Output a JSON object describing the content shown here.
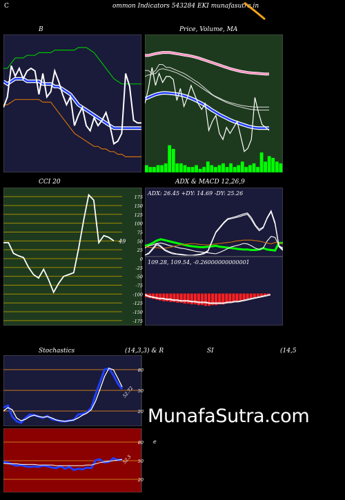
{
  "header": {
    "left_letter": "C",
    "text": "ommon  Indicators 543284  EKI munafasutra.in"
  },
  "watermark": "MunafaSutra.com",
  "colors": {
    "background": "#000000",
    "navy_panel": "#1a1a3a",
    "green_panel": "#1e3a1e",
    "red_panel": "#8b0000",
    "price_white": "#ffffff",
    "ma_blue": "#1f3fff",
    "ma_green": "#00c000",
    "ma_orange": "#d0700a",
    "volume_green": "#00ff00",
    "grid_orange": "#c8781e",
    "grid_olive": "#a08c00"
  },
  "bb": {
    "title": "B",
    "chart_data": {
      "type": "line",
      "title": "B",
      "x": [
        0,
        1,
        2,
        3,
        4,
        5,
        6,
        7,
        8,
        9,
        10,
        11,
        12,
        13,
        14,
        15,
        16,
        17,
        18,
        19,
        20,
        21,
        22,
        23,
        24,
        25,
        26,
        27,
        28,
        29,
        30,
        31,
        32,
        33,
        34,
        35
      ],
      "series": [
        {
          "key": "upper",
          "color": "#00c000",
          "values": [
            95,
            95,
            97,
            99,
            99,
            99,
            100,
            100,
            100,
            101,
            101,
            101,
            101,
            102,
            102,
            102,
            102,
            102,
            102,
            103,
            103,
            103,
            102,
            101,
            99,
            97,
            95,
            93,
            91,
            90,
            89,
            89,
            89,
            89,
            89,
            89
          ]
        },
        {
          "key": "middle",
          "color": "#1f3fff",
          "values": [
            90,
            89,
            90,
            91,
            91,
            91,
            90,
            90,
            90,
            90,
            89,
            89,
            89,
            88,
            88,
            87,
            86,
            85,
            83,
            81,
            80,
            79,
            78,
            77,
            76,
            75,
            74,
            73,
            72,
            72,
            72,
            72,
            72,
            72,
            72,
            72
          ]
        },
        {
          "key": "lower",
          "color": "#d0700a",
          "values": [
            81,
            81,
            82,
            83,
            83,
            83,
            83,
            83,
            83,
            83,
            82,
            82,
            82,
            80,
            78,
            76,
            74,
            72,
            70,
            69,
            68,
            67,
            66,
            65,
            65,
            64,
            64,
            63,
            63,
            62,
            62,
            61,
            61,
            61,
            61,
            61
          ]
        },
        {
          "key": "price",
          "color": "#ffffff",
          "values": [
            80,
            84,
            96,
            92,
            95,
            91,
            94,
            95,
            94,
            85,
            93,
            84,
            86,
            94,
            90,
            85,
            81,
            84,
            73,
            77,
            80,
            73,
            71,
            76,
            73,
            75,
            78,
            73,
            66,
            67,
            70,
            93,
            88,
            75,
            74,
            74
          ]
        }
      ],
      "ylim": [
        55,
        108
      ]
    }
  },
  "price": {
    "title": "Price,  Volume,  MA",
    "chart_data": {
      "type": "line",
      "title": "Price,  Volume,  MA",
      "x": [
        0,
        1,
        2,
        3,
        4,
        5,
        6,
        7,
        8,
        9,
        10,
        11,
        12,
        13,
        14,
        15,
        16,
        17,
        18,
        19,
        20,
        21,
        22,
        23,
        24,
        25,
        26,
        27,
        28,
        29,
        30,
        31,
        32,
        33,
        34,
        35
      ],
      "series": [
        {
          "key": "ma_pink",
          "color": "#ff90c0",
          "values": [
            99,
            99,
            99.3,
            99.6,
            99.8,
            100,
            100,
            100,
            99.8,
            99.6,
            99.4,
            99.2,
            99,
            98.8,
            98.5,
            98.2,
            97.8,
            97.4,
            97,
            96.6,
            96.2,
            95.8,
            95.4,
            95,
            94.6,
            94.3,
            94,
            93.7,
            93.5,
            93.3,
            93.2,
            93.1,
            93,
            92.9,
            92.8,
            92.8
          ]
        },
        {
          "key": "ma_white1",
          "color": "#e0e0e0",
          "values": [
            94,
            94,
            93,
            94,
            96,
            96,
            95,
            95,
            94.5,
            94,
            93.5,
            93,
            92.3,
            91.5,
            90.7,
            90,
            89,
            88,
            87,
            86,
            85.3,
            84.8,
            84.2,
            83.7,
            83.3,
            83,
            82.7,
            82.4,
            82.2,
            82,
            81.9,
            81.8,
            81.8,
            81.8,
            81.8,
            81.8
          ]
        },
        {
          "key": "ma_white2",
          "color": "#e0e0e0",
          "values": [
            92,
            92.5,
            92.7,
            93,
            94.3,
            94.6,
            94.3,
            94,
            93.6,
            93.2,
            92.6,
            92,
            91.3,
            90.6,
            89.8,
            89,
            88.2,
            87.4,
            86.6,
            85.8,
            85.1,
            84.5,
            83.9,
            83.3,
            82.9,
            82.5,
            82.1,
            81.8,
            81.5,
            81.2,
            81,
            80.9,
            80.8,
            80.8,
            80.8,
            80.8
          ]
        },
        {
          "key": "ma_blue",
          "color": "#1f3fff",
          "values": [
            84.5,
            85,
            85.5,
            86,
            86.3,
            86.5,
            86.5,
            86.4,
            86.3,
            86.1,
            85.9,
            85.6,
            85.2,
            84.7,
            84.2,
            83.6,
            83,
            82.3,
            81.5,
            80.7,
            80,
            79.3,
            78.7,
            78.1,
            77.5,
            77,
            76.6,
            76.2,
            75.8,
            75.4,
            75.1,
            74.9,
            74.8,
            74.8,
            74.8,
            74.8
          ]
        },
        {
          "key": "price",
          "color": "#ffffff",
          "values": [
            83,
            88,
            95,
            89,
            93,
            90,
            92,
            92,
            91,
            84,
            88,
            82,
            85,
            89,
            86,
            83,
            81,
            83,
            74,
            77,
            79,
            73,
            71,
            75,
            73,
            75,
            77,
            72,
            67,
            68,
            71,
            85,
            80,
            76,
            75,
            74
          ]
        }
      ],
      "volume": [
        4,
        3,
        3,
        4,
        4,
        5,
        15,
        13,
        5,
        5,
        4,
        3,
        3,
        4,
        2,
        3,
        6,
        4,
        3,
        4,
        5,
        3,
        5,
        3,
        4,
        6,
        3,
        4,
        5,
        3,
        11,
        6,
        9,
        8,
        6,
        5
      ],
      "ylim": [
        60,
        106
      ],
      "volume_max": 16
    }
  },
  "cci": {
    "title": "CCI 20",
    "current_label": "49",
    "chart_data": {
      "type": "line",
      "title": "CCI 20",
      "ticks": [
        175,
        150,
        125,
        100,
        75,
        50,
        25,
        0,
        -25,
        -50,
        -75,
        -100,
        -125,
        -150,
        -175
      ],
      "tick_labels": [
        "175",
        "150",
        "125",
        "100",
        "75",
        "50",
        "25",
        "0",
        "-25",
        "-50",
        "-75",
        "-100",
        "-125",
        "-150",
        "-175"
      ],
      "values": [
        45,
        45,
        15,
        8,
        3,
        -25,
        -45,
        -55,
        -30,
        -60,
        -95,
        -70,
        -50,
        -45,
        -40,
        30,
        110,
        180,
        165,
        45,
        65,
        60,
        50
      ],
      "ylim": [
        -185,
        185
      ]
    }
  },
  "adx": {
    "title": "ADX  & MACD 12,26,9",
    "label": "ADX: 26.45  +DY: 14.69  -DY: 25.26",
    "chart_data": {
      "type": "line",
      "title": "ADX  & MACD 12,26,9",
      "x": [
        0,
        1,
        2,
        3,
        4,
        5,
        6,
        7,
        8,
        9,
        10,
        11,
        12,
        13,
        14,
        15,
        16,
        17,
        18,
        19,
        20,
        21,
        22,
        23,
        24,
        25,
        26,
        27,
        28,
        29,
        30,
        31,
        32,
        33,
        34,
        35
      ],
      "series": [
        {
          "key": "adx",
          "color": "#00ff00",
          "values": [
            20,
            22,
            26,
            31,
            34,
            32,
            30,
            28,
            26,
            24,
            22,
            20,
            19,
            18,
            17,
            17,
            18,
            19,
            20,
            18,
            17,
            16,
            15,
            14,
            13,
            12,
            12,
            11,
            11,
            12,
            15,
            12,
            11,
            10,
            26,
            26
          ]
        },
        {
          "key": "plus_dy",
          "color": "#ffffff",
          "values": [
            15,
            20,
            22,
            25,
            26,
            24,
            21,
            19,
            17,
            15,
            14,
            12,
            10,
            8,
            7,
            6,
            5,
            4,
            3,
            6,
            10,
            14,
            18,
            20,
            22,
            25,
            24,
            20,
            15,
            12,
            15,
            30,
            40,
            38,
            20,
            15
          ]
        },
        {
          "key": "minus_dy",
          "color": "#d0700a",
          "values": [
            18,
            17,
            16,
            16,
            15,
            15,
            16,
            18,
            20,
            22,
            23,
            24,
            25,
            24,
            23,
            22,
            22,
            23,
            24,
            25,
            26,
            27,
            28,
            30,
            31,
            32,
            32,
            32,
            31,
            30,
            28,
            26,
            24,
            27,
            26,
            25
          ]
        },
        {
          "key": "envelope_a",
          "color": "#ffffff",
          "values": [
            0,
            5,
            15,
            25,
            20,
            12,
            8,
            5,
            3,
            2,
            1,
            0,
            0,
            1,
            2,
            5,
            10,
            30,
            50,
            60,
            70,
            78,
            80,
            82,
            85,
            88,
            90,
            80,
            65,
            55,
            60,
            80,
            95,
            70,
            20,
            12
          ]
        },
        {
          "key": "envelope_b",
          "color": "#ffffff",
          "values": [
            0,
            3,
            12,
            22,
            18,
            10,
            6,
            3,
            2,
            1,
            0,
            0,
            0,
            0,
            1,
            3,
            8,
            28,
            48,
            58,
            68,
            76,
            78,
            80,
            82,
            85,
            87,
            76,
            62,
            52,
            58,
            78,
            92,
            66,
            18,
            10
          ]
        }
      ],
      "ylim": [
        0,
        100
      ]
    }
  },
  "macd": {
    "label": "109.28,  109.54,  -0.26000000000001",
    "chart_data": {
      "type": "bar",
      "values": [
        -0.5,
        -0.6,
        -0.7,
        -0.8,
        -0.9,
        -1.0,
        -1.0,
        -1.1,
        -1.1,
        -1.2,
        -1.2,
        -1.3,
        -1.3,
        -1.4,
        -1.4,
        -1.5,
        -1.5,
        -1.6,
        -1.6,
        -1.5,
        -1.5,
        -1.4,
        -1.4,
        -1.3,
        -1.2,
        -1.1,
        -1.0,
        -0.9,
        -0.8,
        -0.7,
        -0.6,
        -0.5,
        -0.4,
        -0.3,
        -0.3,
        -0.2
      ],
      "series": [
        {
          "key": "macd",
          "color": "#ffffff",
          "values": [
            -0.2,
            -0.4,
            -0.5,
            -0.6,
            -0.7,
            -0.7,
            -0.8,
            -0.8,
            -0.9,
            -0.9,
            -1.0,
            -1.0,
            -1.0,
            -1.1,
            -1.1,
            -1.2,
            -1.2,
            -1.2,
            -1.3,
            -1.3,
            -1.3,
            -1.3,
            -1.3,
            -1.2,
            -1.2,
            -1.1,
            -1.1,
            -1.0,
            -0.9,
            -0.8,
            -0.7,
            -0.6,
            -0.5,
            -0.4,
            -0.3,
            -0.2
          ]
        },
        {
          "key": "signal",
          "color": "#ffffff",
          "values": [
            -0.1,
            -0.3,
            -0.4,
            -0.5,
            -0.6,
            -0.6,
            -0.7,
            -0.7,
            -0.8,
            -0.8,
            -0.9,
            -0.9,
            -0.9,
            -1.0,
            -1.0,
            -1.1,
            -1.1,
            -1.1,
            -1.2,
            -1.2,
            -1.2,
            -1.2,
            -1.2,
            -1.1,
            -1.1,
            -1.0,
            -1.0,
            -0.9,
            -0.8,
            -0.7,
            -0.6,
            -0.5,
            -0.4,
            -0.3,
            -0.2,
            -0.1
          ]
        }
      ],
      "ylim": [
        -2,
        0.5
      ]
    }
  },
  "stoch": {
    "title": "Stochastics",
    "params": "(14,3,3) & R",
    "current_label": "52.72",
    "chart_data": {
      "type": "line",
      "title": "Stochastics",
      "ticks": [
        80,
        50,
        20
      ],
      "tick_labels": [
        "80",
        "50",
        "20"
      ],
      "series": [
        {
          "key": "k",
          "color": "#1f3fff",
          "values": [
            25,
            28,
            12,
            5,
            3,
            10,
            15,
            14,
            12,
            10,
            13,
            8,
            7,
            5,
            5,
            6,
            7,
            15,
            16,
            18,
            25,
            45,
            62,
            80,
            82,
            72,
            60,
            52
          ]
        },
        {
          "key": "d",
          "color": "#ffffff",
          "values": [
            20,
            25,
            22,
            10,
            6,
            8,
            12,
            14,
            12,
            11,
            12,
            10,
            7,
            6,
            5,
            6,
            7,
            10,
            14,
            17,
            22,
            35,
            52,
            70,
            82,
            80,
            68,
            55
          ]
        }
      ],
      "ylim": [
        0,
        100
      ]
    }
  },
  "rsi": {
    "title": "SI",
    "params": "(14,5",
    "current_label": "52.5",
    "side_label": "e",
    "chart_data": {
      "type": "line",
      "title": "SI",
      "ticks": [
        80,
        50,
        20
      ],
      "tick_labels": [
        "80",
        "50",
        "20"
      ],
      "series": [
        {
          "key": "rsi",
          "color": "#1f3fff",
          "values": [
            48,
            47,
            44,
            42,
            43,
            41,
            40,
            41,
            40,
            42,
            41,
            39,
            38,
            41,
            37,
            40,
            35,
            37,
            36,
            39,
            38,
            51,
            52,
            47,
            48,
            54,
            51,
            52
          ]
        },
        {
          "key": "mid",
          "color": "#ffffff",
          "values": [
            46,
            45,
            45,
            45,
            44,
            44,
            44,
            44,
            43,
            43,
            43,
            43,
            42,
            42,
            42,
            42,
            42,
            42,
            42,
            43,
            43,
            45,
            47,
            48,
            49,
            50,
            51,
            52
          ]
        }
      ],
      "ylim": [
        0,
        100
      ]
    }
  }
}
